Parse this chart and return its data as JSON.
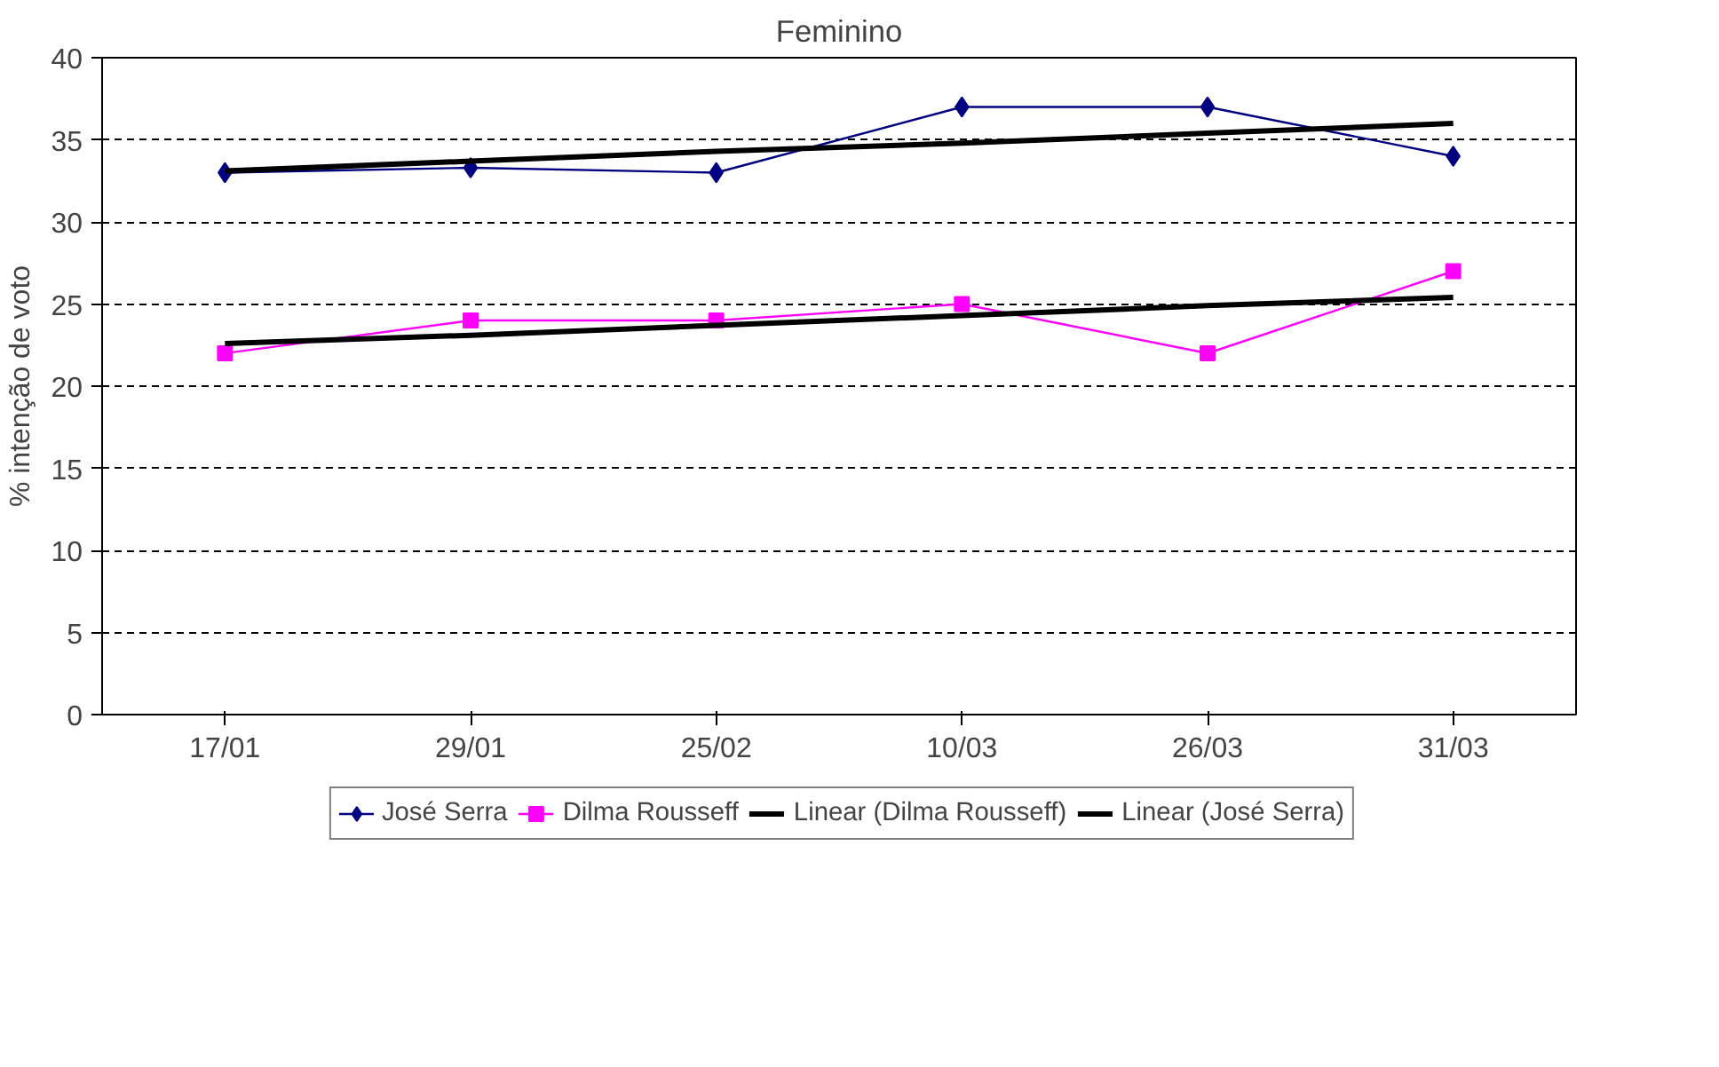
{
  "chart_data": {
    "type": "line",
    "title": "Feminino",
    "ylabel": "% intenção de voto",
    "categories": [
      "17/01",
      "29/01",
      "25/02",
      "10/03",
      "26/03",
      "31/03"
    ],
    "ylim": [
      0,
      40
    ],
    "yticks": [
      0,
      5,
      10,
      15,
      20,
      25,
      30,
      35,
      40
    ],
    "grid": "y",
    "legend": "bottom",
    "series": [
      {
        "name": "José Serra",
        "color": "#000080",
        "marker": "diamond",
        "values": [
          33,
          33.3,
          33,
          37,
          37,
          34
        ]
      },
      {
        "name": "Dilma Rousseff",
        "color": "#ff00ff",
        "marker": "square",
        "values": [
          22,
          24,
          24,
          25,
          22,
          27
        ]
      },
      {
        "name": "Linear (Dilma Rousseff)",
        "color": "#000000",
        "marker": "none",
        "values": [
          22.6,
          23.1,
          23.7,
          24.3,
          24.9,
          25.4
        ]
      },
      {
        "name": "Linear (José Serra)",
        "color": "#000000",
        "marker": "none",
        "values": [
          33.1,
          33.7,
          34.3,
          34.8,
          35.4,
          36
        ]
      }
    ]
  }
}
